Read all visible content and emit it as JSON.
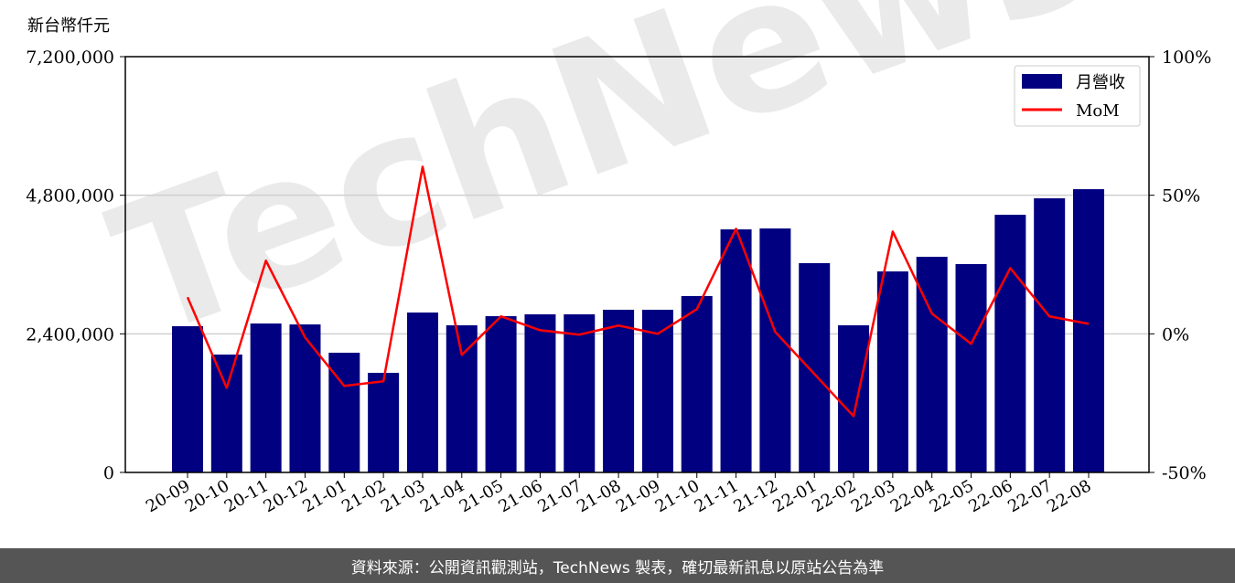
{
  "chart_data": {
    "type": "bar+line",
    "unit_label": "新台幣仟元",
    "watermark": "TechNews",
    "categories": [
      "20-09",
      "20-10",
      "20-11",
      "20-12",
      "21-01",
      "21-02",
      "21-03",
      "21-04",
      "21-05",
      "21-06",
      "21-07",
      "21-08",
      "21-09",
      "21-10",
      "21-11",
      "21-12",
      "22-01",
      "22-02",
      "22-03",
      "22-04",
      "22-05",
      "22-06",
      "22-07",
      "22-08"
    ],
    "series": [
      {
        "name": "月營收",
        "type": "bar",
        "axis": "left",
        "color": "#000080",
        "values": [
          2532000,
          2041000,
          2579000,
          2563000,
          2073000,
          1725000,
          2769000,
          2548000,
          2706000,
          2738000,
          2738000,
          2817000,
          2817000,
          3054000,
          4209000,
          4225000,
          3624000,
          2548000,
          3481000,
          3734000,
          3608000,
          4462000,
          4747000,
          4905000
        ]
      },
      {
        "name": "MoM",
        "type": "line",
        "axis": "right",
        "color": "#ff0000",
        "values": [
          13.2,
          -19.5,
          26.4,
          -1.3,
          -18.8,
          -17.1,
          60.3,
          -7.6,
          6.3,
          1.3,
          -0.3,
          3.0,
          0.0,
          8.9,
          37.9,
          0.7,
          -14.5,
          -29.7,
          36.9,
          7.3,
          -3.6,
          23.7,
          6.3,
          3.6
        ]
      }
    ],
    "left_axis": {
      "ylim": [
        0,
        7200000
      ],
      "ticks": [
        0,
        2400000,
        4800000,
        7200000
      ],
      "tick_labels": [
        "0",
        "2,400,000",
        "4,800,000",
        "7,200,000"
      ]
    },
    "right_axis": {
      "ylim": [
        -50,
        100
      ],
      "ticks": [
        -50,
        0,
        50,
        100
      ],
      "tick_labels": [
        "-50%",
        "0%",
        "50%",
        "100%"
      ]
    },
    "grid": "horizontal at left-axis ticks",
    "legend": "top-right"
  },
  "footer": {
    "text": "資料來源：公開資訊觀測站，TechNews 製表，確切最新訊息以原站公告為準"
  }
}
